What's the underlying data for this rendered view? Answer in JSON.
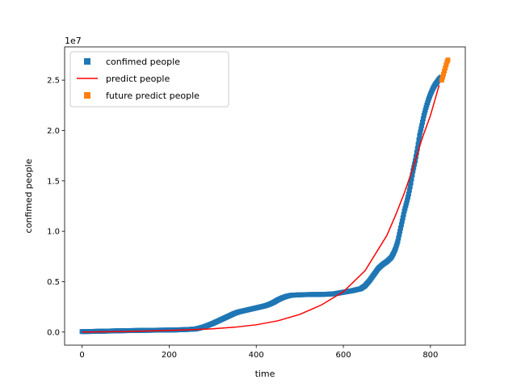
{
  "chart_data": {
    "type": "scatter",
    "title": "",
    "xlabel": "time",
    "ylabel": "confimed people",
    "y_offset_label": "1e7",
    "xlim": [
      -40,
      880
    ],
    "ylim": [
      -1300000,
      28300000
    ],
    "xticks": [
      0,
      200,
      400,
      600,
      800
    ],
    "yticks": [
      0,
      5000000,
      10000000,
      15000000,
      20000000,
      25000000
    ],
    "ytick_labels": [
      "0.0",
      "0.5",
      "1.0",
      "1.5",
      "2.0",
      "2.5"
    ],
    "grid": false,
    "legend_position": "upper-left",
    "series": [
      {
        "name": "confimed people",
        "kind": "square-markers",
        "color": "#1f77b4",
        "x": [
          0,
          20,
          40,
          60,
          80,
          100,
          120,
          140,
          160,
          180,
          200,
          220,
          240,
          260,
          270,
          280,
          290,
          300,
          310,
          320,
          330,
          340,
          350,
          360,
          370,
          380,
          390,
          400,
          410,
          420,
          430,
          440,
          450,
          460,
          470,
          480,
          500,
          520,
          540,
          560,
          580,
          600,
          620,
          640,
          650,
          660,
          670,
          680,
          690,
          700,
          710,
          715,
          720,
          725,
          730,
          735,
          740,
          745,
          750,
          755,
          760,
          765,
          770,
          775,
          780,
          785,
          790,
          795,
          800,
          805,
          810,
          815,
          820,
          825
        ],
        "y": [
          50000,
          60000,
          80000,
          100000,
          120000,
          140000,
          150000,
          170000,
          180000,
          190000,
          200000,
          220000,
          250000,
          300000,
          400000,
          520000,
          680000,
          850000,
          1050000,
          1250000,
          1450000,
          1650000,
          1850000,
          2000000,
          2100000,
          2200000,
          2300000,
          2400000,
          2500000,
          2600000,
          2750000,
          2950000,
          3200000,
          3400000,
          3550000,
          3650000,
          3700000,
          3720000,
          3730000,
          3750000,
          3800000,
          3950000,
          4100000,
          4300000,
          4600000,
          5100000,
          5700000,
          6300000,
          6700000,
          7000000,
          7400000,
          7800000,
          8300000,
          9000000,
          10000000,
          11000000,
          12000000,
          12800000,
          13700000,
          14800000,
          16000000,
          17000000,
          18200000,
          19500000,
          20500000,
          21500000,
          22300000,
          23000000,
          23600000,
          24100000,
          24500000,
          24800000,
          25100000,
          25300000
        ]
      },
      {
        "name": "predict people",
        "kind": "line",
        "color": "#ff0000",
        "x": [
          0,
          50,
          100,
          150,
          200,
          250,
          300,
          350,
          400,
          450,
          500,
          550,
          600,
          650,
          700,
          720,
          740,
          760,
          780,
          800,
          810,
          820
        ],
        "y": [
          0,
          20000,
          50000,
          100000,
          160000,
          230000,
          320000,
          480000,
          720000,
          1120000,
          1750000,
          2700000,
          4000000,
          6100000,
          9600000,
          11600000,
          13800000,
          16300000,
          19100000,
          21500000,
          23000000,
          24500000
        ]
      },
      {
        "name": "future predict people",
        "kind": "square-markers",
        "color": "#ff7f0e",
        "x": [
          826,
          828,
          830,
          832,
          834,
          836,
          838,
          840
        ],
        "y": [
          25000000,
          25300000,
          25600000,
          25900000,
          26200000,
          26500000,
          26800000,
          27000000
        ]
      }
    ]
  }
}
